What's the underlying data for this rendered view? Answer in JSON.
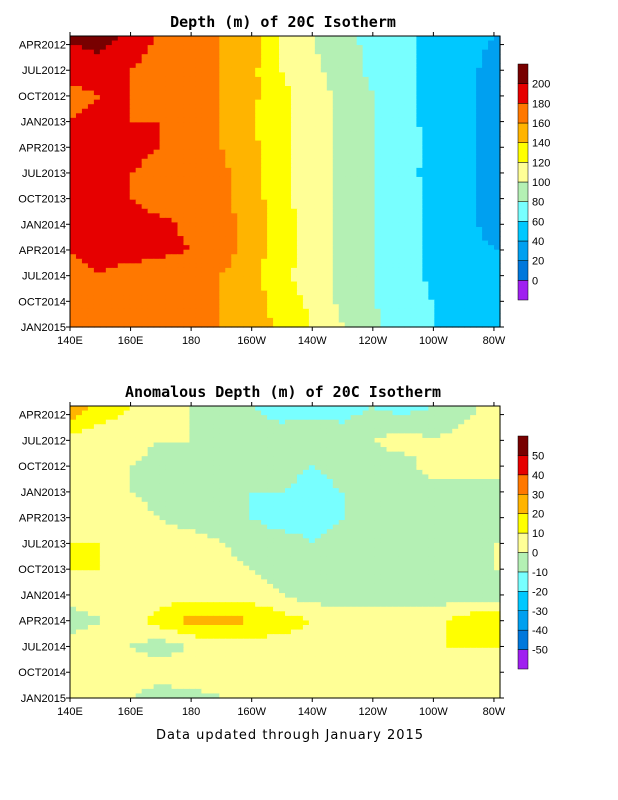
{
  "footer": "Data updated through January 2015",
  "chart_data": [
    {
      "type": "heatmap",
      "title": "Depth (m) of 20C Isotherm",
      "x_tick_labels": [
        "140E",
        "160E",
        "180",
        "160W",
        "140W",
        "120W",
        "100W",
        "80W"
      ],
      "x_tick_values": [
        140,
        160,
        180,
        200,
        220,
        240,
        260,
        280
      ],
      "y_tick_labels": [
        "APR2012",
        "JUL2012",
        "OCT2012",
        "JAN2013",
        "APR2013",
        "JUL2013",
        "OCT2013",
        "JAN2014",
        "APR2014",
        "JUL2014",
        "OCT2014",
        "JAN2015"
      ],
      "y_tick_values": [
        0,
        3,
        6,
        9,
        12,
        15,
        18,
        21,
        24,
        27,
        30,
        33
      ],
      "xlim": [
        140,
        282
      ],
      "ylim": [
        -1,
        33
      ],
      "colorbar": {
        "levels": [
          0,
          20,
          40,
          60,
          80,
          100,
          120,
          140,
          160,
          180,
          200
        ],
        "level_labels": [
          "0",
          "20",
          "40",
          "60",
          "80",
          "100",
          "120",
          "140",
          "160",
          "180",
          "200"
        ],
        "colors": [
          "#a020f0",
          "#0078dc",
          "#00a0f0",
          "#00c8ff",
          "#78ffff",
          "#b4f0b4",
          "#ffff96",
          "#ffff00",
          "#ffb400",
          "#ff7800",
          "#e60000",
          "#780000"
        ]
      },
      "values_by_longitude": {
        "longitudes": [
          140,
          150,
          160,
          170,
          180,
          190,
          200,
          210,
          220,
          230,
          240,
          250,
          260,
          270,
          280
        ],
        "months": [
          -1,
          3,
          6,
          9,
          12,
          15,
          18,
          21,
          24,
          27,
          30,
          33
        ],
        "depth": [
          [
            205,
            210,
            195,
            175,
            165,
            160,
            150,
            120,
            100,
            85,
            75,
            65,
            55,
            45,
            40
          ],
          [
            185,
            190,
            180,
            170,
            165,
            160,
            145,
            120,
            105,
            90,
            75,
            65,
            55,
            45,
            35
          ],
          [
            175,
            180,
            180,
            170,
            165,
            160,
            145,
            125,
            110,
            95,
            80,
            65,
            55,
            45,
            35
          ],
          [
            180,
            185,
            180,
            180,
            175,
            160,
            140,
            125,
            110,
            95,
            80,
            65,
            55,
            45,
            35
          ],
          [
            185,
            195,
            185,
            180,
            170,
            160,
            145,
            125,
            110,
            95,
            80,
            70,
            55,
            45,
            35
          ],
          [
            180,
            185,
            180,
            175,
            170,
            165,
            145,
            125,
            110,
            95,
            80,
            65,
            55,
            45,
            35
          ],
          [
            180,
            185,
            180,
            170,
            170,
            165,
            150,
            125,
            110,
            95,
            80,
            70,
            55,
            45,
            35
          ],
          [
            180,
            185,
            190,
            185,
            175,
            165,
            155,
            130,
            110,
            95,
            80,
            70,
            55,
            45,
            35
          ],
          [
            180,
            185,
            185,
            185,
            180,
            170,
            150,
            130,
            110,
            95,
            80,
            70,
            55,
            45,
            40
          ],
          [
            175,
            180,
            175,
            170,
            165,
            160,
            145,
            125,
            110,
            95,
            80,
            70,
            55,
            50,
            40
          ],
          [
            170,
            175,
            170,
            165,
            160,
            160,
            150,
            130,
            115,
            95,
            80,
            70,
            60,
            50,
            45
          ],
          [
            175,
            175,
            170,
            165,
            160,
            160,
            150,
            135,
            120,
            100,
            85,
            70,
            60,
            50,
            45
          ]
        ]
      }
    },
    {
      "type": "heatmap",
      "title": "Anomalous Depth (m) of 20C Isotherm",
      "x_tick_labels": [
        "140E",
        "160E",
        "180",
        "160W",
        "140W",
        "120W",
        "100W",
        "80W"
      ],
      "x_tick_values": [
        140,
        160,
        180,
        200,
        220,
        240,
        260,
        280
      ],
      "y_tick_labels": [
        "APR2012",
        "JUL2012",
        "OCT2012",
        "JAN2013",
        "APR2013",
        "JUL2013",
        "OCT2013",
        "JAN2014",
        "APR2014",
        "JUL2014",
        "OCT2014",
        "JAN2015"
      ],
      "y_tick_values": [
        0,
        3,
        6,
        9,
        12,
        15,
        18,
        21,
        24,
        27,
        30,
        33
      ],
      "xlim": [
        140,
        282
      ],
      "ylim": [
        -1,
        33
      ],
      "colorbar": {
        "levels": [
          -50,
          -40,
          -30,
          -20,
          -10,
          0,
          10,
          20,
          30,
          40,
          50
        ],
        "level_labels": [
          "-50",
          "-40",
          "-30",
          "-20",
          "-10",
          "0",
          "10",
          "20",
          "30",
          "40",
          "50"
        ],
        "colors": [
          "#a020f0",
          "#0078dc",
          "#00a0f0",
          "#00c8ff",
          "#78ffff",
          "#b4f0b4",
          "#ffff96",
          "#ffff00",
          "#ffb400",
          "#ff7800",
          "#e60000",
          "#780000"
        ]
      },
      "values_by_longitude": {
        "longitudes": [
          140,
          150,
          160,
          170,
          180,
          190,
          200,
          210,
          220,
          230,
          240,
          250,
          260,
          270,
          280
        ],
        "months": [
          -1,
          3,
          6,
          9,
          12,
          15,
          18,
          21,
          24,
          27,
          30,
          33
        ],
        "anomaly": [
          [
            30,
            15,
            10,
            5,
            0,
            -5,
            -10,
            -15,
            -15,
            -15,
            -10,
            -15,
            -10,
            -5,
            5
          ],
          [
            5,
            5,
            5,
            0,
            0,
            -5,
            -5,
            -5,
            0,
            -5,
            0,
            5,
            0,
            5,
            10
          ],
          [
            5,
            0,
            0,
            -5,
            -5,
            -5,
            -5,
            -5,
            -10,
            -5,
            -5,
            -5,
            5,
            5,
            5
          ],
          [
            5,
            5,
            0,
            -5,
            -5,
            -5,
            -10,
            -10,
            -15,
            -10,
            -10,
            -5,
            -5,
            -5,
            -5
          ],
          [
            10,
            5,
            5,
            0,
            -5,
            -5,
            -10,
            -15,
            -15,
            -10,
            -10,
            -5,
            -5,
            -5,
            -5
          ],
          [
            10,
            10,
            5,
            5,
            5,
            0,
            -5,
            -5,
            -10,
            -5,
            -5,
            -5,
            -5,
            0,
            0
          ],
          [
            10,
            10,
            10,
            5,
            5,
            5,
            0,
            -5,
            -5,
            -5,
            -5,
            -5,
            -5,
            -5,
            0
          ],
          [
            5,
            5,
            5,
            5,
            5,
            5,
            5,
            0,
            -5,
            -5,
            -5,
            -5,
            -5,
            -5,
            -5
          ],
          [
            -5,
            0,
            5,
            15,
            25,
            25,
            20,
            15,
            10,
            5,
            5,
            5,
            5,
            15,
            20
          ],
          [
            5,
            5,
            0,
            -5,
            0,
            5,
            5,
            5,
            5,
            5,
            10,
            5,
            10,
            10,
            10
          ],
          [
            5,
            5,
            5,
            5,
            10,
            5,
            5,
            5,
            5,
            5,
            5,
            0,
            5,
            5,
            5
          ],
          [
            5,
            5,
            0,
            -5,
            -5,
            0,
            5,
            5,
            10,
            5,
            5,
            5,
            0,
            5,
            5
          ]
        ]
      }
    }
  ]
}
